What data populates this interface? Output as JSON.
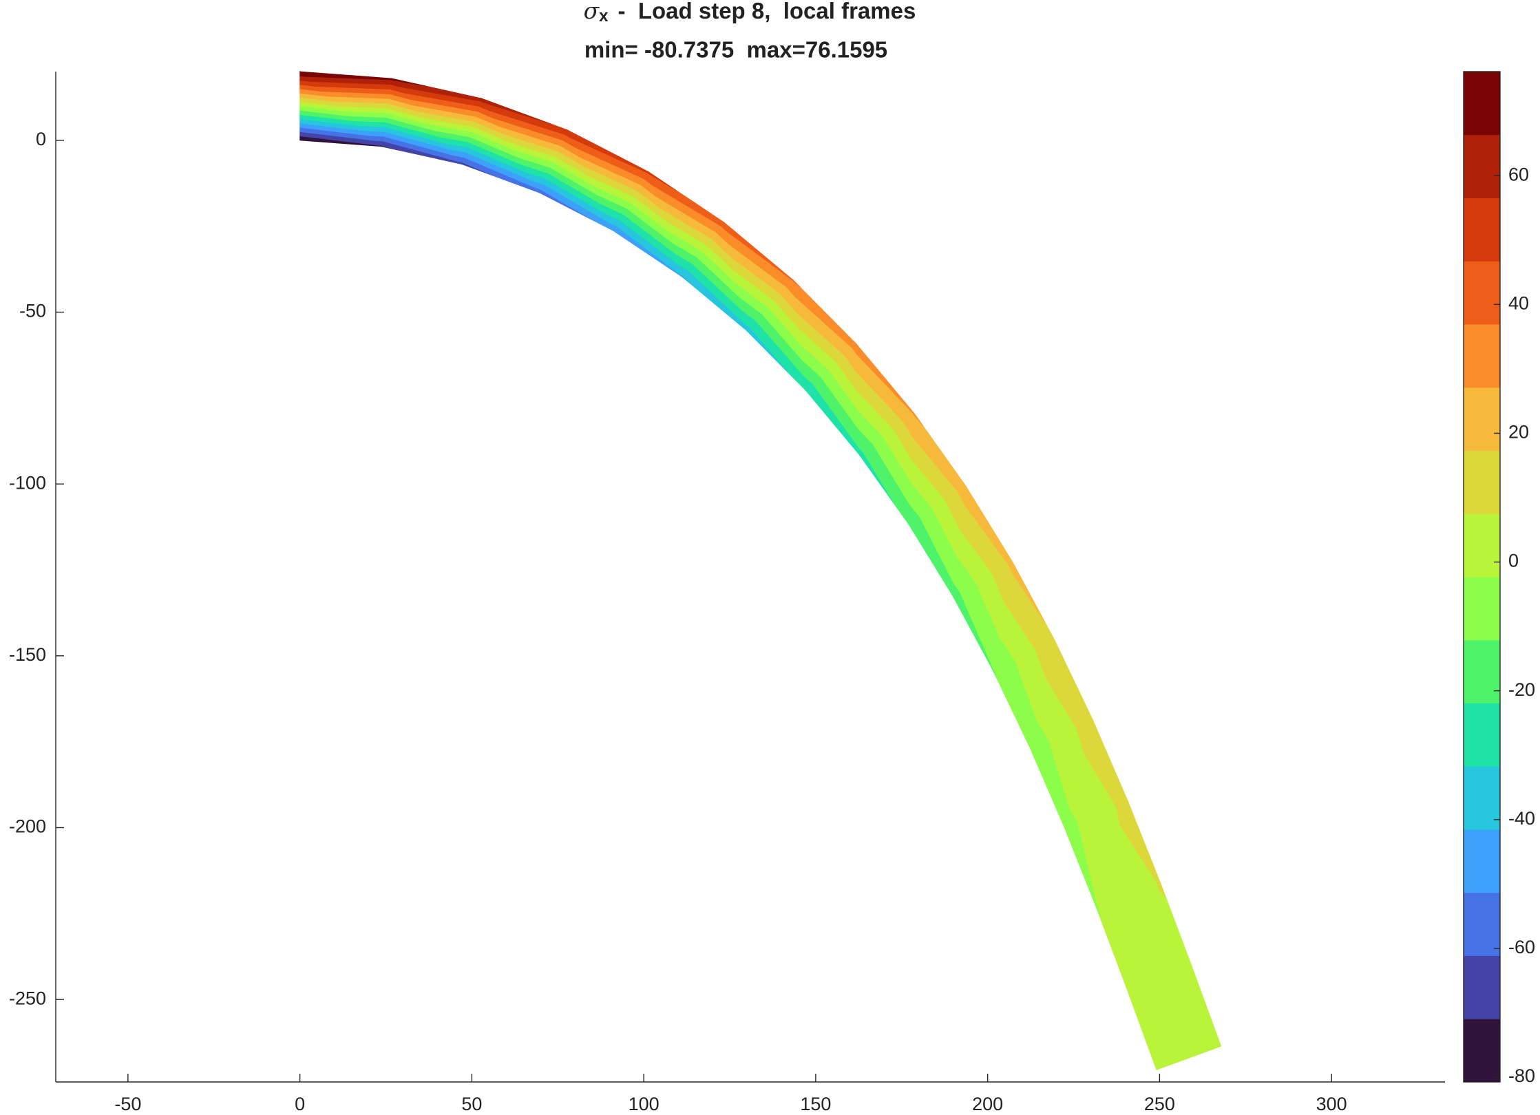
{
  "chart_data": {
    "type": "beam-contour",
    "title_symbol": "σ",
    "title_subscript": "x",
    "title": "-  Load step 8,  local frames",
    "subtitle": "min= -80.7375  max=76.1595",
    "xlim": [
      -71,
      333
    ],
    "ylim": [
      -274,
      20
    ],
    "xticks": [
      -50,
      0,
      50,
      100,
      150,
      200,
      250,
      300
    ],
    "yticks": [
      -250,
      -200,
      -150,
      -100,
      -50,
      0
    ],
    "beam": {
      "top_x": [
        0,
        26.71,
        52.77,
        77.74,
        101.3,
        123.25,
        143.45,
        161.88,
        178.6,
        193.67,
        207.26,
        219.5,
        230.6,
        240.77,
        250.22,
        259.18,
        267.89
      ],
      "top_y": [
        20,
        17.99,
        12.21,
        3.04,
        -9.11,
        -23.8,
        -40.67,
        -59.31,
        -79.39,
        -100.62,
        -122.71,
        -145.46,
        -168.69,
        -192.23,
        -215.98,
        -239.8,
        -263.62
      ],
      "bottom_x": [
        0,
        23.77,
        47.13,
        69.68,
        91.12,
        111.23,
        129.89,
        147.06,
        162.72,
        176.97,
        189.9,
        201.66,
        212.38,
        222.29,
        231.56,
        240.42,
        249.09
      ],
      "bottom_y": [
        0,
        -1.79,
        -6.97,
        -15.26,
        -26.31,
        -39.8,
        -55.37,
        -72.73,
        -91.57,
        -111.62,
        -132.65,
        -154.48,
        -176.93,
        -199.87,
        -223.16,
        -246.73,
        -270.46
      ],
      "top_values": [
        76.16,
        69.02,
        62.02,
        55.29,
        48.93,
        42.97,
        37.48,
        32.44,
        27.86,
        23.71,
        19.96,
        16.56,
        13.47,
        10.63,
        7.98,
        5.46,
        3
      ],
      "bottom_values": [
        -80.74,
        -72.57,
        -64.56,
        -56.86,
        -49.57,
        -42.76,
        -36.47,
        -30.7,
        -25.46,
        -20.71,
        -16.41,
        -12.52,
        -8.98,
        -5.73,
        -2.7,
        0.19,
        3
      ]
    },
    "clim": [
      -80.7375,
      76.1595
    ],
    "colormap": [
      "#30123b",
      "#4343a8",
      "#4672e6",
      "#3da0fb",
      "#26c6de",
      "#1fe2a8",
      "#4ef36a",
      "#8cfd4a",
      "#b9f43a",
      "#dcd83c",
      "#f6b93b",
      "#fb8c2a",
      "#ef5e19",
      "#d43a0c",
      "#b0210a",
      "#7a0403"
    ],
    "cticks": [
      -80,
      -60,
      -40,
      -20,
      0,
      20,
      40,
      60
    ]
  }
}
